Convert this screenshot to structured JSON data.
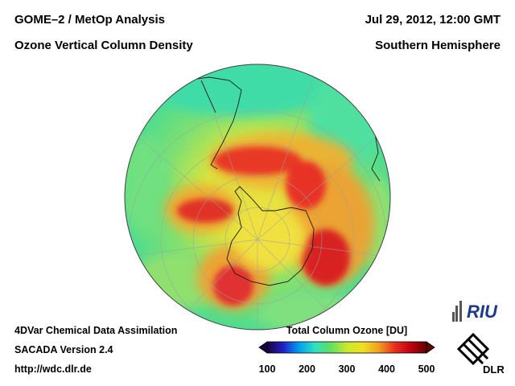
{
  "header": {
    "title_line1": "GOME–2 / MetOp Analysis",
    "title_line2": "Ozone Vertical Column Density",
    "date": "Jul 29, 2012, 12:00 GMT",
    "region": "Southern Hemisphere"
  },
  "footer": {
    "line1": "4DVar Chemical Data Assimilation",
    "line2": "SACADA Version 2.4",
    "line3": "http://wdc.dlr.de"
  },
  "colorbar": {
    "title": "Total Column Ozone [DU]",
    "min": 100,
    "max": 500,
    "ticks": [
      100,
      200,
      300,
      400,
      500
    ],
    "tick_labels": [
      "100",
      "200",
      "300",
      "400",
      "500"
    ],
    "colors": [
      "#1a0040",
      "#2020c8",
      "#00a0f0",
      "#30e0c0",
      "#60e060",
      "#c8e830",
      "#f0e020",
      "#f0a020",
      "#e83020",
      "#c00010",
      "#600000"
    ]
  },
  "logos": {
    "riu": "RIU",
    "dlr": "DLR"
  },
  "map": {
    "projection": "orthographic, south polar",
    "center": "South Pole"
  }
}
